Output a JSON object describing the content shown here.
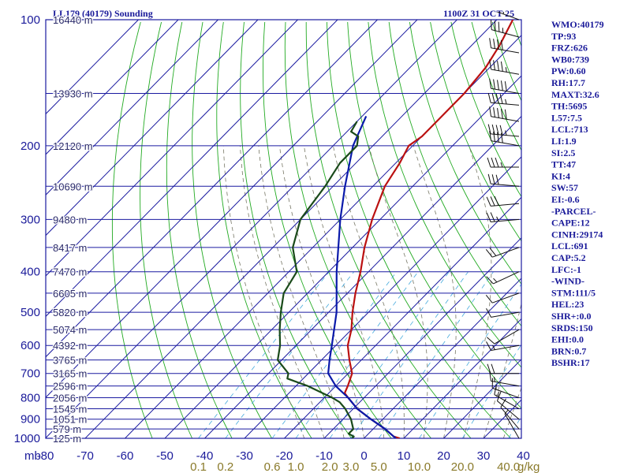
{
  "chart_data": {
    "type": "line",
    "title": "LL179 (40179) Sounding",
    "time_label": "1100Z 31 OCT 25",
    "pressure_axis": {
      "unit_label": "mb",
      "range": [
        100,
        1000
      ],
      "scale": "log",
      "ticks": [
        100,
        200,
        300,
        400,
        500,
        600,
        700,
        800,
        900,
        1000
      ]
    },
    "temperature_axis": {
      "range": [
        -80,
        40
      ],
      "ticks": [
        "-80",
        "-70",
        "-60",
        "-50",
        "-40",
        "-30",
        "-20",
        "-10",
        "0",
        "10",
        "20",
        "30",
        "40"
      ]
    },
    "mixing_ratio_axis": {
      "unit_label": "g/kg",
      "ticks": [
        "0.1",
        "0.2",
        "0.6",
        "1.0",
        "2.0",
        "3.0",
        "5.0",
        "10.0",
        "20.0",
        "40.0"
      ]
    },
    "height_labels": [
      {
        "p": 100,
        "label": "16440 m"
      },
      {
        "p": 150,
        "label": "13930 m"
      },
      {
        "p": 200,
        "label": "12120 m"
      },
      {
        "p": 250,
        "label": "10690 m"
      },
      {
        "p": 300,
        "label": "9480 m"
      },
      {
        "p": 350,
        "label": "8417 m"
      },
      {
        "p": 400,
        "label": "7470 m"
      },
      {
        "p": 450,
        "label": "6605 m"
      },
      {
        "p": 500,
        "label": "5820 m"
      },
      {
        "p": 550,
        "label": "5074 m"
      },
      {
        "p": 600,
        "label": "4392 m"
      },
      {
        "p": 650,
        "label": "3765 m"
      },
      {
        "p": 700,
        "label": "3165 m"
      },
      {
        "p": 750,
        "label": "2596 m"
      },
      {
        "p": 800,
        "label": "2056 m"
      },
      {
        "p": 850,
        "label": "1545 m"
      },
      {
        "p": 900,
        "label": "1051 m"
      },
      {
        "p": 950,
        "label": "579 m"
      },
      {
        "p": 1000,
        "label": "125 m"
      }
    ],
    "series": [
      {
        "color": "#bb1111",
        "points": [
          [
            100,
            -66
          ],
          [
            115,
            -63
          ],
          [
            130,
            -61
          ],
          [
            150,
            -60
          ],
          [
            170,
            -60
          ],
          [
            190,
            -60
          ],
          [
            200,
            -61
          ],
          [
            220,
            -59
          ],
          [
            250,
            -57
          ],
          [
            300,
            -52
          ],
          [
            350,
            -47
          ],
          [
            400,
            -42
          ],
          [
            450,
            -38
          ],
          [
            500,
            -34
          ],
          [
            550,
            -30
          ],
          [
            600,
            -27
          ],
          [
            650,
            -23
          ],
          [
            700,
            -19
          ],
          [
            750,
            -17
          ],
          [
            780,
            -16
          ],
          [
            800,
            -14
          ],
          [
            850,
            -9
          ],
          [
            900,
            -3
          ],
          [
            950,
            3
          ],
          [
            990,
            7
          ],
          [
            1000,
            9
          ]
        ]
      },
      {
        "color": "#0a1aaa",
        "points": [
          [
            170,
            -79
          ],
          [
            200,
            -75
          ],
          [
            250,
            -67
          ],
          [
            300,
            -60
          ],
          [
            400,
            -48
          ],
          [
            500,
            -38
          ],
          [
            600,
            -31
          ],
          [
            650,
            -28
          ],
          [
            700,
            -25
          ],
          [
            750,
            -20
          ],
          [
            800,
            -14
          ],
          [
            850,
            -9
          ],
          [
            900,
            -3
          ],
          [
            950,
            3
          ],
          [
            990,
            7
          ],
          [
            1000,
            8
          ]
        ]
      },
      {
        "color": "#1a4a1a",
        "points": [
          [
            175,
            -80
          ],
          [
            185,
            -79
          ],
          [
            190,
            -76
          ],
          [
            200,
            -74
          ],
          [
            220,
            -74
          ],
          [
            250,
            -72
          ],
          [
            300,
            -70
          ],
          [
            350,
            -65
          ],
          [
            400,
            -58
          ],
          [
            450,
            -56
          ],
          [
            500,
            -52
          ],
          [
            550,
            -48
          ],
          [
            600,
            -44
          ],
          [
            650,
            -41
          ],
          [
            700,
            -35
          ],
          [
            720,
            -34
          ],
          [
            750,
            -27
          ],
          [
            800,
            -18
          ],
          [
            820,
            -15
          ],
          [
            850,
            -12
          ],
          [
            900,
            -8
          ],
          [
            950,
            -5
          ],
          [
            975,
            -5
          ],
          [
            990,
            -3
          ],
          [
            1000,
            -3
          ]
        ]
      }
    ],
    "winds": [
      {
        "p": 100,
        "dir": 290,
        "spd": 40
      },
      {
        "p": 110,
        "dir": 285,
        "spd": 35
      },
      {
        "p": 120,
        "dir": 280,
        "spd": 40
      },
      {
        "p": 135,
        "dir": 280,
        "spd": 45
      },
      {
        "p": 150,
        "dir": 280,
        "spd": 50
      },
      {
        "p": 160,
        "dir": 275,
        "spd": 45
      },
      {
        "p": 175,
        "dir": 280,
        "spd": 50
      },
      {
        "p": 190,
        "dir": 275,
        "spd": 45
      },
      {
        "p": 200,
        "dir": 280,
        "spd": 40
      },
      {
        "p": 225,
        "dir": 270,
        "spd": 35
      },
      {
        "p": 250,
        "dir": 275,
        "spd": 30
      },
      {
        "p": 275,
        "dir": 265,
        "spd": 30
      },
      {
        "p": 300,
        "dir": 265,
        "spd": 25
      },
      {
        "p": 350,
        "dir": 250,
        "spd": 20
      },
      {
        "p": 400,
        "dir": 245,
        "spd": 15
      },
      {
        "p": 450,
        "dir": 250,
        "spd": 10
      },
      {
        "p": 500,
        "dir": 260,
        "spd": 10
      },
      {
        "p": 550,
        "dir": 240,
        "spd": 10
      },
      {
        "p": 600,
        "dir": 260,
        "spd": 15
      },
      {
        "p": 700,
        "dir": 270,
        "spd": 20
      },
      {
        "p": 750,
        "dir": 280,
        "spd": 15
      },
      {
        "p": 800,
        "dir": 290,
        "spd": 15
      },
      {
        "p": 850,
        "dir": 300,
        "spd": 15
      },
      {
        "p": 900,
        "dir": 310,
        "spd": 10
      },
      {
        "p": 950,
        "dir": 320,
        "spd": 10
      },
      {
        "p": 1000,
        "dir": 330,
        "spd": 5
      }
    ],
    "indices": [
      "WMO:40179",
      "TP:93",
      "FRZ:626",
      "WB0:739",
      "PW:0.60",
      "RH:17.7",
      "MAXT:32.6",
      "TH:5695",
      "L57:7.5",
      "LCL:713",
      "LI:1.9",
      "SI:2.5",
      "TT:47",
      "KI:4",
      "SW:57",
      "EI:-0.6",
      "-PARCEL-",
      "CAPE:12",
      "CINH:29174",
      "LCL:691",
      "CAP:5.2",
      "LFC:-1",
      "-WIND-",
      "STM:111/5",
      "HEL:23",
      "SHR+:0.0",
      "SRDS:150",
      "EHI:0.0",
      "BRN:0.7",
      "BSHR:17"
    ]
  },
  "colors": {
    "grid": "#1a1aa0",
    "dry_adiabat": "#22aa22",
    "moist_adiabat": "#777766",
    "mixing_ratio": "#44aadd",
    "label": "#1a1a9a",
    "mix_label": "#8a7a2a"
  }
}
